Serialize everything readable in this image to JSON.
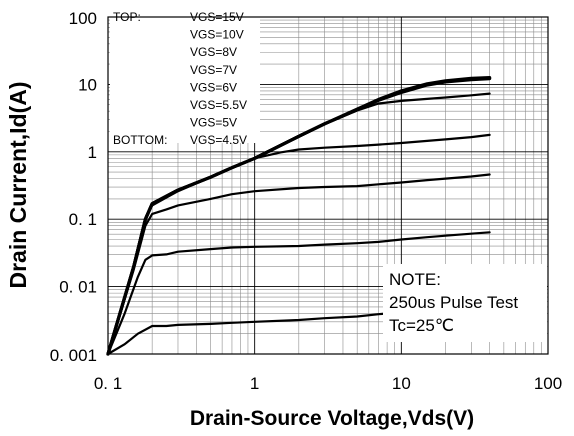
{
  "chart_data": {
    "type": "line",
    "title": "",
    "xlabel": "Drain-Source Voltage,Vds(V)",
    "ylabel": "Drain Current,Id(A)",
    "xscale": "log",
    "yscale": "log",
    "xlim": [
      0.1,
      100
    ],
    "ylim": [
      0.001,
      100
    ],
    "xticks": [
      0.1,
      1,
      10,
      100
    ],
    "yticks": [
      0.001,
      0.01,
      0.1,
      1,
      10,
      100
    ],
    "xtick_labels": [
      "0. 1",
      "1",
      "10",
      "100"
    ],
    "ytick_labels": [
      "0. 001",
      "0. 01",
      "0. 1",
      "1",
      "10",
      "100"
    ],
    "grid": true,
    "legend_position": "top-left",
    "legend": {
      "top_label": "TOP:",
      "bottom_label": "BOTTOM:",
      "entries": [
        "VGS=15V",
        "VGS=10V",
        "VGS=8V",
        "VGS=7V",
        "VGS=6V",
        "VGS=5.5V",
        "VGS=5V",
        "VGS=4.5V"
      ]
    },
    "note": {
      "title": "NOTE:",
      "line1": "250us Pulse Test",
      "line2": "Tc=25℃"
    },
    "series": [
      {
        "name": "VGS=15V",
        "x": [
          0.1,
          0.15,
          0.18,
          0.2,
          0.25,
          0.3,
          0.5,
          0.7,
          1,
          2,
          3,
          5,
          7,
          10,
          15,
          20,
          30,
          40
        ],
        "y": [
          0.001,
          0.02,
          0.1,
          0.17,
          0.22,
          0.27,
          0.42,
          0.58,
          0.8,
          1.7,
          2.6,
          4.3,
          6.0,
          8.0,
          10.2,
          11.3,
          12.3,
          12.6
        ],
        "stroke": 3.2
      },
      {
        "name": "VGS=10V",
        "x": [
          0.1,
          0.15,
          0.18,
          0.2,
          0.25,
          0.3,
          0.5,
          0.7,
          1,
          2,
          3,
          5,
          7,
          10,
          15,
          20,
          30,
          40
        ],
        "y": [
          0.001,
          0.02,
          0.1,
          0.17,
          0.22,
          0.27,
          0.42,
          0.58,
          0.8,
          1.7,
          2.6,
          4.2,
          5.9,
          7.8,
          10.0,
          11.1,
          12.1,
          12.4
        ],
        "stroke": 3.2
      },
      {
        "name": "VGS=8V",
        "x": [
          0.1,
          0.15,
          0.18,
          0.2,
          0.25,
          0.3,
          0.5,
          0.7,
          1,
          2,
          3,
          5,
          7,
          10,
          15,
          20,
          30,
          40
        ],
        "y": [
          0.001,
          0.02,
          0.1,
          0.17,
          0.22,
          0.27,
          0.42,
          0.58,
          0.8,
          1.7,
          2.6,
          4.2,
          5.8,
          7.6,
          9.8,
          10.9,
          11.8,
          12.2
        ],
        "stroke": 3.2
      },
      {
        "name": "VGS=7V",
        "x": [
          0.1,
          0.15,
          0.18,
          0.2,
          0.25,
          0.3,
          0.5,
          0.7,
          1,
          2,
          3,
          5,
          7,
          10,
          15,
          20,
          30,
          40
        ],
        "y": [
          0.001,
          0.02,
          0.1,
          0.17,
          0.22,
          0.27,
          0.42,
          0.58,
          0.8,
          1.7,
          2.6,
          4.1,
          5.2,
          5.7,
          6.1,
          6.4,
          6.9,
          7.3
        ],
        "stroke": 2.2
      },
      {
        "name": "VGS=6V",
        "x": [
          0.1,
          0.15,
          0.18,
          0.2,
          0.25,
          0.3,
          0.5,
          0.7,
          1,
          1.5,
          2,
          3,
          5,
          7,
          10,
          15,
          20,
          30,
          40
        ],
        "y": [
          0.001,
          0.02,
          0.1,
          0.16,
          0.21,
          0.26,
          0.42,
          0.58,
          0.8,
          0.98,
          1.08,
          1.15,
          1.22,
          1.28,
          1.35,
          1.45,
          1.53,
          1.65,
          1.78
        ],
        "stroke": 2.2
      },
      {
        "name": "VGS=5.5V",
        "x": [
          0.1,
          0.15,
          0.18,
          0.2,
          0.25,
          0.3,
          0.5,
          0.7,
          1,
          2,
          3,
          5,
          7,
          10,
          15,
          20,
          30,
          40
        ],
        "y": [
          0.001,
          0.018,
          0.08,
          0.12,
          0.14,
          0.16,
          0.2,
          0.235,
          0.26,
          0.29,
          0.3,
          0.31,
          0.33,
          0.35,
          0.38,
          0.4,
          0.43,
          0.46
        ],
        "stroke": 2.2
      },
      {
        "name": "VGS=5V",
        "x": [
          0.1,
          0.13,
          0.16,
          0.18,
          0.2,
          0.25,
          0.3,
          0.5,
          0.7,
          1,
          2,
          3,
          5,
          7,
          10,
          15,
          20,
          30,
          40
        ],
        "y": [
          0.001,
          0.004,
          0.014,
          0.025,
          0.029,
          0.03,
          0.033,
          0.036,
          0.038,
          0.039,
          0.04,
          0.042,
          0.044,
          0.046,
          0.05,
          0.054,
          0.057,
          0.061,
          0.064
        ],
        "stroke": 2.2
      },
      {
        "name": "VGS=4.5V",
        "x": [
          0.1,
          0.13,
          0.16,
          0.2,
          0.25,
          0.3,
          0.5,
          0.7,
          1,
          2,
          3,
          5,
          7,
          8
        ],
        "y": [
          0.001,
          0.0014,
          0.002,
          0.0026,
          0.0026,
          0.0027,
          0.0028,
          0.0029,
          0.003,
          0.0032,
          0.0034,
          0.0036,
          0.0039,
          0.004
        ],
        "stroke": 2.2
      }
    ]
  }
}
